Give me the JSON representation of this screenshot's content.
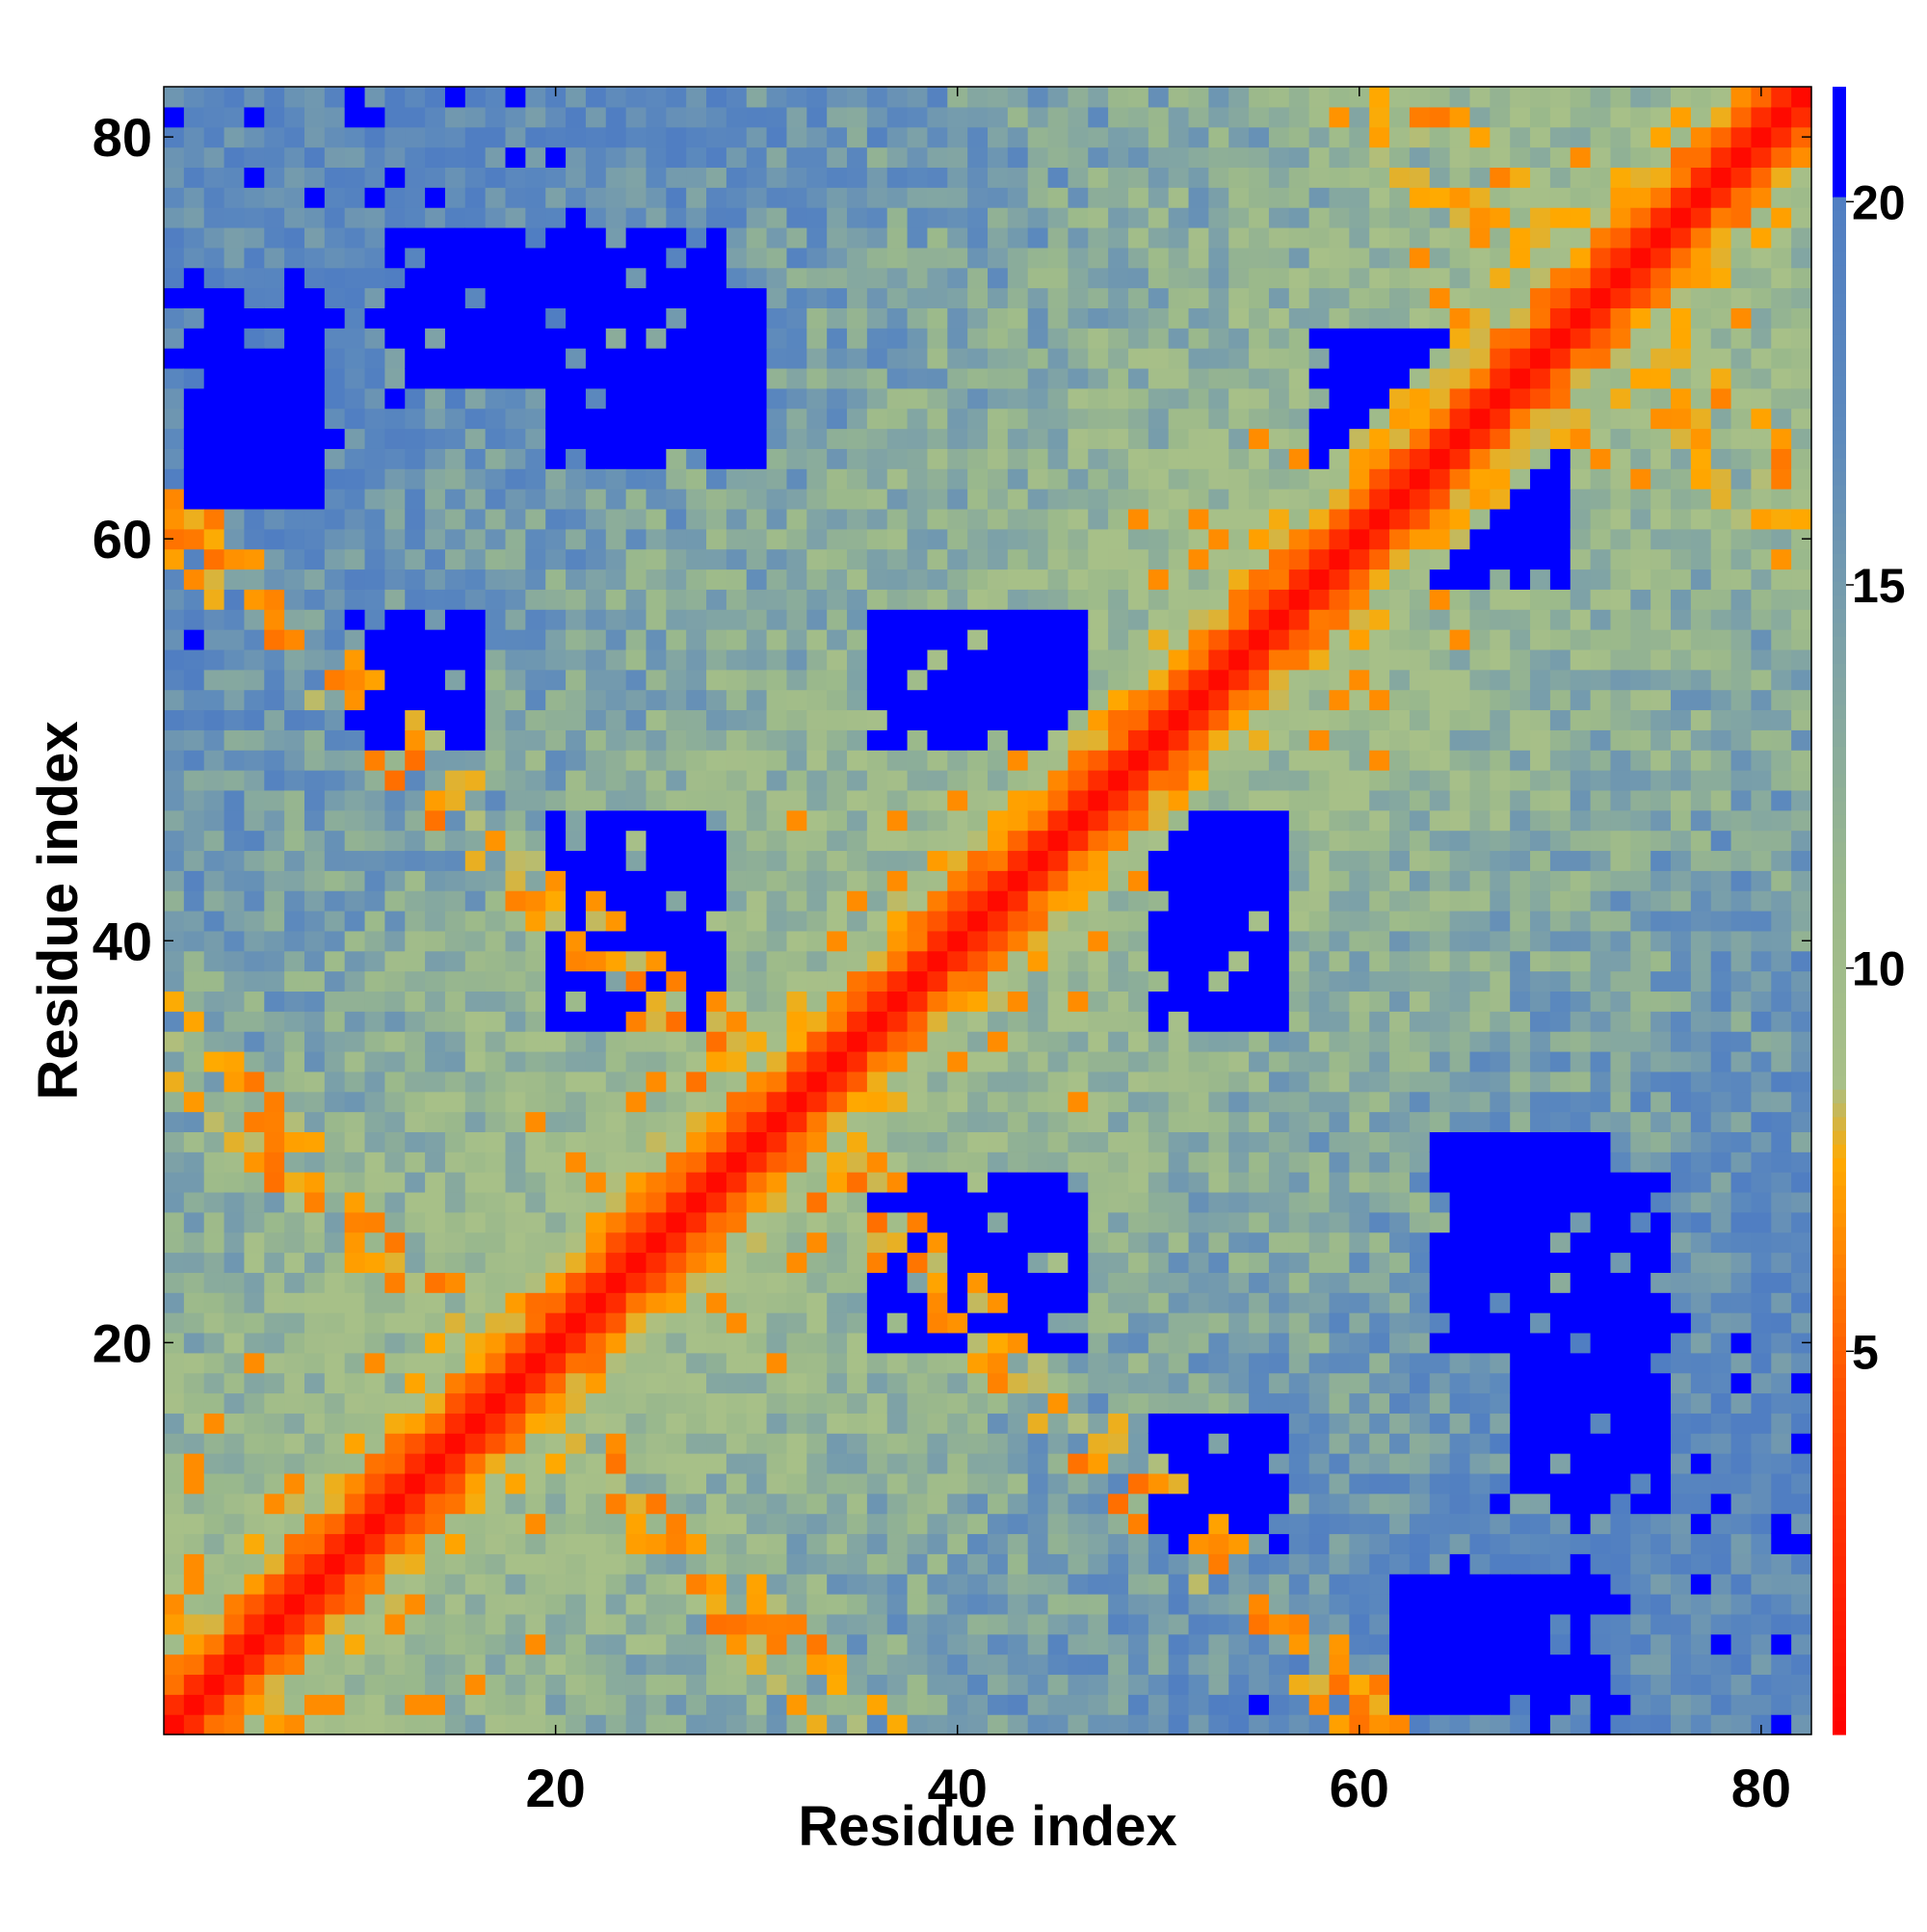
{
  "chart_data": {
    "type": "heatmap",
    "title": "",
    "xlabel": "Residue index",
    "ylabel": "Residue index",
    "n_residues": 82,
    "xlim": [
      0.5,
      82.5
    ],
    "ylim": [
      0.5,
      82.5
    ],
    "x_ticks": [
      20,
      40,
      60,
      80
    ],
    "y_ticks": [
      20,
      40,
      60,
      80
    ],
    "x_tick_labels": [
      "20",
      "40",
      "60",
      "80"
    ],
    "y_tick_labels": [
      "20",
      "40",
      "60",
      "80"
    ],
    "colorbar": {
      "range": [
        0,
        21.5
      ],
      "ticks": [
        5,
        10,
        15,
        20
      ],
      "tick_labels": [
        "5",
        "10",
        "15",
        "20"
      ],
      "position": "right",
      "stops": [
        {
          "value": 0,
          "color": "#ff0000"
        },
        {
          "value": 4.5,
          "color": "#ff5000"
        },
        {
          "value": 6.5,
          "color": "#ff8c00"
        },
        {
          "value": 7.5,
          "color": "#ffaa00"
        },
        {
          "value": 8.5,
          "color": "#a8c088"
        },
        {
          "value": 11,
          "color": "#9bb98b"
        },
        {
          "value": 14,
          "color": "#7fa3a6"
        },
        {
          "value": 17,
          "color": "#5c89bd"
        },
        {
          "value": 20,
          "color": "#507ec2"
        },
        {
          "value": 20.01,
          "color": "#0000ff"
        },
        {
          "value": 21.5,
          "color": "#0000ff"
        }
      ]
    },
    "matrix_description": "Symmetric residue-residue distance map; diagonal ~0 (red), near-diagonal band 4-8 (orange), distant pairs capped above 20 (blue).",
    "blue_blocks": [
      {
        "i": [
          68,
          75
        ],
        "j": [
          12,
          28
        ]
      },
      {
        "i": [
          64,
          72
        ],
        "j": [
          20,
          30
        ]
      },
      {
        "i": [
          36,
          46
        ],
        "j": [
          20,
          28
        ]
      },
      {
        "i": [
          36,
          46
        ],
        "j": [
          50,
          56
        ]
      },
      {
        "i": [
          10,
          16
        ],
        "j": [
          50,
          56
        ]
      },
      {
        "i": [
          62,
          72
        ],
        "j": [
          2,
          8
        ]
      },
      {
        "i": [
          60,
          70
        ],
        "j": [
          58,
          66
        ]
      }
    ]
  }
}
